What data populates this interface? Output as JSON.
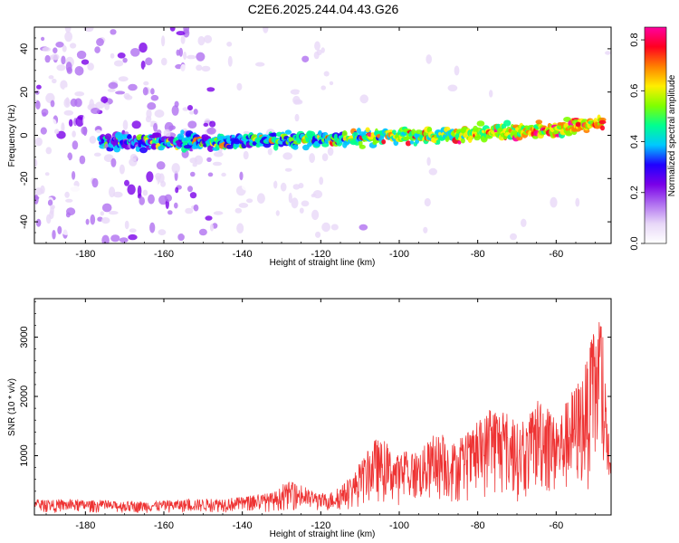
{
  "title": "C2E6.2025.244.04.43.G26",
  "chart_data": [
    {
      "type": "heatmap",
      "name": "spectrogram",
      "xlabel": "Height of straight line (km)",
      "ylabel": "Frequency (Hz)",
      "xlim": [
        -193,
        -46
      ],
      "ylim": [
        -50,
        50
      ],
      "xticks": [
        -180,
        -160,
        -140,
        -120,
        -100,
        -80,
        -60
      ],
      "yticks": [
        -40,
        -20,
        0,
        20,
        40
      ],
      "ridge": {
        "description": "dominant frequency track vs height",
        "x": [
          -176,
          -160,
          -140,
          -120,
          -100,
          -80,
          -60,
          -48
        ],
        "freq": [
          -3,
          -3,
          -2.5,
          -1.5,
          -0.5,
          0.5,
          3,
          6
        ]
      },
      "colorbar": {
        "label": "Normalized spectral amplitude",
        "range": [
          0.0,
          0.85
        ],
        "ticks": [
          0.0,
          0.2,
          0.4,
          0.6,
          0.8
        ],
        "tick_labels": [
          "0.0",
          "0.2",
          "0.4",
          "0.6",
          "0.8"
        ],
        "colors": [
          "#ffffff",
          "#e8d8f8",
          "#b070f0",
          "#7a00e8",
          "#2000ff",
          "#00c8ff",
          "#00ff90",
          "#80ff00",
          "#ffee00",
          "#ff8000",
          "#ff0020",
          "#ff00a0"
        ]
      }
    },
    {
      "type": "line",
      "name": "snr",
      "xlabel": "Height of straight line (km)",
      "ylabel": "SNR (10 * v/v)",
      "xlim": [
        -193,
        -46
      ],
      "ylim": [
        0,
        3650
      ],
      "xticks": [
        -180,
        -160,
        -140,
        -120,
        -100,
        -80,
        -60
      ],
      "yticks": [
        1000,
        2000,
        3000
      ],
      "color": "#ee3333",
      "envelope_x": [
        -193,
        -180,
        -170,
        -160,
        -150,
        -140,
        -132,
        -128,
        -120,
        -116,
        -112,
        -106,
        -100,
        -95,
        -90,
        -85,
        -80,
        -76,
        -72,
        -68,
        -64,
        -60,
        -56,
        -53,
        -51,
        -49,
        -47,
        -46
      ],
      "envelope_y": [
        250,
        250,
        220,
        240,
        270,
        300,
        380,
        560,
        340,
        420,
        650,
        1300,
        1000,
        1100,
        1350,
        1200,
        1500,
        1900,
        1600,
        1500,
        2100,
        1600,
        2100,
        2450,
        2900,
        3550,
        2000,
        750
      ]
    }
  ],
  "colors": {
    "line": "#ee3333",
    "axes": "#000000",
    "background": "#ffffff"
  }
}
